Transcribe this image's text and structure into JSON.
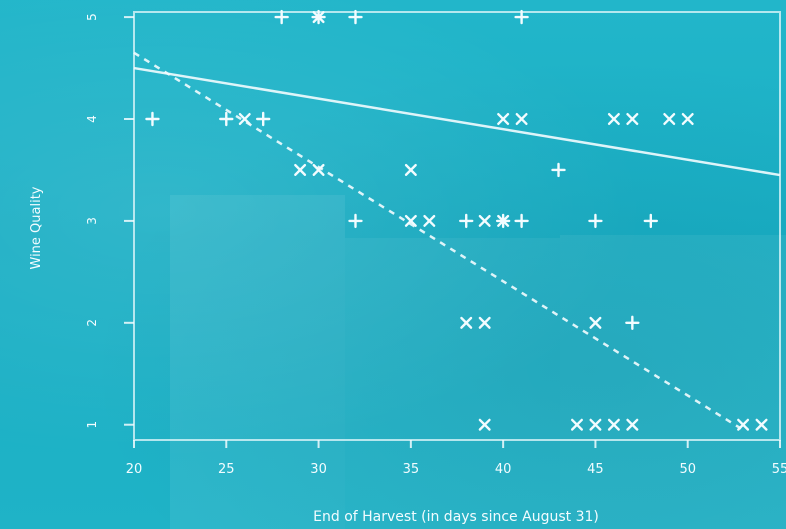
{
  "chart_data": {
    "type": "scatter",
    "xlabel": "End of Harvest (in days since August 31)",
    "ylabel": "Wine Quality",
    "xlim": [
      20,
      55
    ],
    "ylim": [
      0.85,
      5.05
    ],
    "x_ticks": [
      20,
      25,
      30,
      35,
      40,
      45,
      50,
      55
    ],
    "y_ticks": [
      1,
      2,
      3,
      4,
      5
    ],
    "series": [
      {
        "marker": "plus",
        "points": [
          [
            28,
            5
          ],
          [
            30,
            5
          ],
          [
            32,
            5
          ],
          [
            41,
            5
          ],
          [
            21,
            4
          ],
          [
            25,
            4
          ],
          [
            27,
            4
          ],
          [
            43,
            3.5
          ],
          [
            32,
            3
          ],
          [
            38,
            3
          ],
          [
            40,
            3
          ],
          [
            41,
            3
          ],
          [
            45,
            3
          ],
          [
            48,
            3
          ],
          [
            47,
            2
          ]
        ]
      },
      {
        "marker": "cross",
        "points": [
          [
            30,
            5
          ],
          [
            26,
            4
          ],
          [
            40,
            4
          ],
          [
            41,
            4
          ],
          [
            46,
            4
          ],
          [
            47,
            4
          ],
          [
            49,
            4
          ],
          [
            50,
            4
          ],
          [
            29,
            3.5
          ],
          [
            30,
            3.5
          ],
          [
            35,
            3.5
          ],
          [
            35,
            3
          ],
          [
            36,
            3
          ],
          [
            39,
            3
          ],
          [
            40,
            3
          ],
          [
            38,
            2
          ],
          [
            39,
            2
          ],
          [
            45,
            2
          ],
          [
            39,
            1
          ],
          [
            44,
            1
          ],
          [
            45,
            1
          ],
          [
            46,
            1
          ],
          [
            47,
            1
          ],
          [
            53,
            1
          ],
          [
            54,
            1
          ]
        ]
      }
    ],
    "lines": [
      {
        "style": "solid",
        "x": [
          20,
          55
        ],
        "y": [
          4.5,
          3.45
        ]
      },
      {
        "style": "dashed",
        "x": [
          20,
          53
        ],
        "y": [
          4.65,
          0.95
        ]
      }
    ],
    "grid": false,
    "legend": "none"
  },
  "colors": {
    "background": "#1eb4c8",
    "ink": "#f2fcff"
  }
}
